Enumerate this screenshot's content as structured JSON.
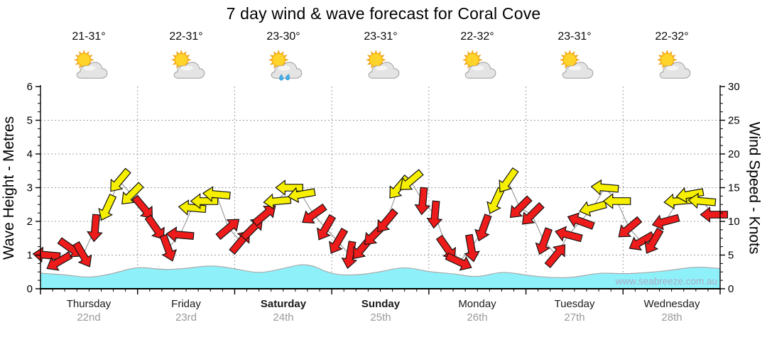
{
  "title": "7 day wind & wave forecast for Coral Cove",
  "watermark": "www.seabreeze.com.au",
  "days": [
    {
      "name": "Thursday",
      "date": "22nd",
      "temp": "21-31°",
      "icon": "sun-cloud",
      "bold": false
    },
    {
      "name": "Friday",
      "date": "23rd",
      "temp": "22-31°",
      "icon": "sun-cloud",
      "bold": false
    },
    {
      "name": "Saturday",
      "date": "24th",
      "temp": "23-30°",
      "icon": "sun-cloud-rain",
      "bold": true
    },
    {
      "name": "Sunday",
      "date": "25th",
      "temp": "23-31°",
      "icon": "sun-cloud",
      "bold": true
    },
    {
      "name": "Monday",
      "date": "26th",
      "temp": "22-32°",
      "icon": "sun-cloud",
      "bold": false
    },
    {
      "name": "Tuesday",
      "date": "27th",
      "temp": "23-31°",
      "icon": "sun-cloud",
      "bold": false
    },
    {
      "name": "Wednesday",
      "date": "28th",
      "temp": "22-32°",
      "icon": "sun-cloud",
      "bold": false
    }
  ],
  "chart_data": {
    "type": "line",
    "title": "7 day wind & wave forecast for Coral Cove",
    "days": 7,
    "points_per_day": 8,
    "interval_hours": 3,
    "grid": "dotted",
    "left_axis": {
      "label": "Wave Height - Metres",
      "range": [
        0,
        6
      ],
      "ticks": [
        0,
        1,
        2,
        3,
        4,
        5,
        6
      ]
    },
    "right_axis": {
      "label": "Wind Speed - Knots",
      "range": [
        0,
        30
      ],
      "ticks": [
        0,
        5,
        10,
        15,
        20,
        25,
        30
      ]
    },
    "wind_series": {
      "name": "Wind Speed",
      "units": "knots",
      "dir_units": "screen degrees clockwise, 0 = arrow pointing right",
      "colors": {
        "light_wind": "#EE1B1B",
        "moderate_wind": "#F6EF00"
      },
      "points": [
        {
          "kn": 5,
          "dir": 185,
          "c": "R"
        },
        {
          "kn": 4,
          "dir": 150,
          "c": "R"
        },
        {
          "kn": 6,
          "dir": 35,
          "c": "R"
        },
        {
          "kn": 5,
          "dir": 60,
          "c": "R"
        },
        {
          "kn": 9,
          "dir": 95,
          "c": "R"
        },
        {
          "kn": 12,
          "dir": 115,
          "c": "Y"
        },
        {
          "kn": 16,
          "dir": 130,
          "c": "Y"
        },
        {
          "kn": 14,
          "dir": 135,
          "c": "Y"
        },
        {
          "kn": 12,
          "dir": 50,
          "c": "R"
        },
        {
          "kn": 9,
          "dir": 55,
          "c": "R"
        },
        {
          "kn": 6,
          "dir": 70,
          "c": "R"
        },
        {
          "kn": 8,
          "dir": 185,
          "c": "R"
        },
        {
          "kn": 12,
          "dir": 185,
          "c": "Y"
        },
        {
          "kn": 13,
          "dir": 180,
          "c": "Y"
        },
        {
          "kn": 14,
          "dir": 185,
          "c": "Y"
        },
        {
          "kn": 9,
          "dir": -40,
          "c": "R"
        },
        {
          "kn": 7,
          "dir": -50,
          "c": "R"
        },
        {
          "kn": 9,
          "dir": -45,
          "c": "R"
        },
        {
          "kn": 11,
          "dir": -40,
          "c": "R"
        },
        {
          "kn": 13,
          "dir": 175,
          "c": "Y"
        },
        {
          "kn": 15,
          "dir": 180,
          "c": "Y"
        },
        {
          "kn": 14,
          "dir": 170,
          "c": "Y"
        },
        {
          "kn": 11,
          "dir": 145,
          "c": "R"
        },
        {
          "kn": 9,
          "dir": 120,
          "c": "R"
        },
        {
          "kn": 7,
          "dir": 120,
          "c": "R"
        },
        {
          "kn": 5,
          "dir": 100,
          "c": "R"
        },
        {
          "kn": 6,
          "dir": 130,
          "c": "R"
        },
        {
          "kn": 8,
          "dir": 135,
          "c": "R"
        },
        {
          "kn": 10,
          "dir": 130,
          "c": "R"
        },
        {
          "kn": 15,
          "dir": 130,
          "c": "Y"
        },
        {
          "kn": 16,
          "dir": 140,
          "c": "Y"
        },
        {
          "kn": 13,
          "dir": 95,
          "c": "R"
        },
        {
          "kn": 11,
          "dir": 95,
          "c": "R"
        },
        {
          "kn": 6,
          "dir": 55,
          "c": "R"
        },
        {
          "kn": 4,
          "dir": 25,
          "c": "R"
        },
        {
          "kn": 6,
          "dir": 80,
          "c": "R"
        },
        {
          "kn": 9,
          "dir": 110,
          "c": "R"
        },
        {
          "kn": 13,
          "dir": 115,
          "c": "Y"
        },
        {
          "kn": 16,
          "dir": 125,
          "c": "Y"
        },
        {
          "kn": 12,
          "dir": 135,
          "c": "R"
        },
        {
          "kn": 11,
          "dir": 135,
          "c": "R"
        },
        {
          "kn": 7,
          "dir": 110,
          "c": "R"
        },
        {
          "kn": 5,
          "dir": -50,
          "c": "R"
        },
        {
          "kn": 8,
          "dir": 195,
          "c": "R"
        },
        {
          "kn": 10,
          "dir": 200,
          "c": "R"
        },
        {
          "kn": 12,
          "dir": 165,
          "c": "Y"
        },
        {
          "kn": 15,
          "dir": 185,
          "c": "Y"
        },
        {
          "kn": 13,
          "dir": 180,
          "c": "Y"
        },
        {
          "kn": 9,
          "dir": 140,
          "c": "R"
        },
        {
          "kn": 7,
          "dir": 150,
          "c": "R"
        },
        {
          "kn": 7,
          "dir": 120,
          "c": "R"
        },
        {
          "kn": 10,
          "dir": 165,
          "c": "R"
        },
        {
          "kn": 13,
          "dir": 175,
          "c": "Y"
        },
        {
          "kn": 14,
          "dir": 170,
          "c": "Y"
        },
        {
          "kn": 13,
          "dir": 185,
          "c": "Y"
        },
        {
          "kn": 11,
          "dir": 180,
          "c": "R"
        }
      ]
    },
    "wave_series": {
      "name": "Wave Height",
      "units": "metres",
      "color": "#8EF1FA",
      "values": [
        0.46,
        0.42,
        0.32,
        0.45,
        0.66,
        0.56,
        0.6,
        0.7,
        0.6,
        0.45,
        0.6,
        0.77,
        0.42,
        0.4,
        0.5,
        0.66,
        0.5,
        0.45,
        0.33,
        0.52,
        0.4,
        0.33,
        0.33,
        0.48,
        0.44,
        0.48,
        0.55,
        0.66,
        0.6
      ]
    }
  }
}
